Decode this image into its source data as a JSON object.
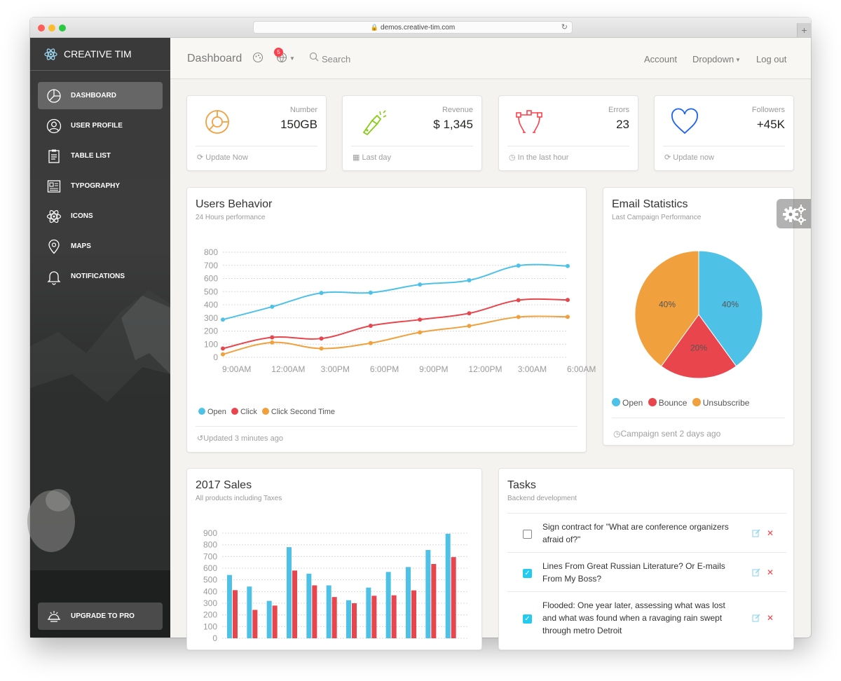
{
  "browser": {
    "url": "demos.creative-tim.com"
  },
  "sidebar": {
    "brand": "CREATIVE TIM",
    "items": [
      {
        "label": "DASHBOARD",
        "icon": "chart-pie-icon",
        "active": true
      },
      {
        "label": "USER PROFILE",
        "icon": "user-icon",
        "active": false
      },
      {
        "label": "TABLE LIST",
        "icon": "clipboard-icon",
        "active": false
      },
      {
        "label": "TYPOGRAPHY",
        "icon": "news-icon",
        "active": false
      },
      {
        "label": "ICONS",
        "icon": "atom-icon",
        "active": false
      },
      {
        "label": "MAPS",
        "icon": "pin-icon",
        "active": false
      },
      {
        "label": "NOTIFICATIONS",
        "icon": "bell-icon",
        "active": false
      }
    ],
    "upgrade": "UPGRADE TO PRO"
  },
  "navbar": {
    "title": "Dashboard",
    "notification_count": "5",
    "search": "Search",
    "links": [
      "Account",
      "Dropdown",
      "Log out"
    ]
  },
  "stats": [
    {
      "label": "Number",
      "value": "150GB",
      "footer": "Update Now",
      "icon": "chart-icon",
      "color": "#f3a041"
    },
    {
      "label": "Revenue",
      "value": "$ 1,345",
      "footer": "Last day",
      "icon": "light-icon",
      "color": "#87cb16"
    },
    {
      "label": "Errors",
      "value": "23",
      "footer": "In the last hour",
      "icon": "vector-icon",
      "color": "#fb404b"
    },
    {
      "label": "Followers",
      "value": "+45K",
      "footer": "Update now",
      "icon": "heart-icon",
      "color": "#1d62f0"
    }
  ],
  "users_behavior": {
    "title": "Users Behavior",
    "subtitle": "24 Hours performance",
    "footer": "Updated 3 minutes ago",
    "chart_data": {
      "type": "line",
      "categories": [
        "9:00AM",
        "12:00AM",
        "3:00PM",
        "6:00PM",
        "9:00PM",
        "12:00PM",
        "3:00AM",
        "6:00AM"
      ],
      "ylim": [
        0,
        800
      ],
      "yticks": [
        0,
        100,
        200,
        300,
        400,
        500,
        600,
        700,
        800
      ],
      "grid": true,
      "legend": "bottom-left",
      "series": [
        {
          "name": "Open",
          "color": "#4ec1e6",
          "values": [
            287,
            385,
            490,
            492,
            554,
            586,
            698,
            695
          ]
        },
        {
          "name": "Click",
          "color": "#e8464c",
          "values": [
            67,
            152,
            143,
            240,
            287,
            335,
            435,
            437
          ]
        },
        {
          "name": "Click Second Time",
          "color": "#f0a03c",
          "values": [
            23,
            113,
            67,
            108,
            190,
            239,
            307,
            308
          ]
        }
      ]
    }
  },
  "email_stats": {
    "title": "Email Statistics",
    "subtitle": "Last Campaign Performance",
    "footer": "Campaign sent 2 days ago",
    "chart_data": {
      "type": "pie",
      "labels": [
        "Open",
        "Bounce",
        "Unsubscribe"
      ],
      "values": [
        40,
        20,
        40
      ],
      "display": [
        "40%",
        "20%",
        "40%"
      ],
      "colors": [
        "#4ec1e6",
        "#e8464c",
        "#f0a03c"
      ],
      "legend": "bottom"
    }
  },
  "sales": {
    "title": "2017 Sales",
    "subtitle": "All products including Taxes",
    "chart_data": {
      "type": "bar",
      "ylim": [
        0,
        900
      ],
      "yticks": [
        0,
        100,
        200,
        300,
        400,
        500,
        600,
        700,
        800,
        900
      ],
      "grid": true,
      "series": [
        {
          "color": "#4ec1e6",
          "values": [
            542,
            443,
            320,
            780,
            553,
            453,
            326,
            434,
            568,
            610,
            756,
            895
          ]
        },
        {
          "color": "#e8464c",
          "values": [
            412,
            243,
            280,
            580,
            453,
            353,
            300,
            364,
            368,
            410,
            636,
            695
          ]
        }
      ]
    }
  },
  "tasks": {
    "title": "Tasks",
    "subtitle": "Backend development",
    "items": [
      {
        "text": "Sign contract for \"What are conference organizers afraid of?\"",
        "checked": false
      },
      {
        "text": "Lines From Great Russian Literature? Or E-mails From My Boss?",
        "checked": true
      },
      {
        "text": "Flooded: One year later, assessing what was lost and what was found when a ravaging rain swept through metro Detroit",
        "checked": true
      }
    ]
  },
  "icons": {
    "update": "refresh-icon",
    "calendar": "calendar-icon",
    "clock": "clock-icon",
    "history": "history-icon",
    "settings": "gears-icon"
  }
}
